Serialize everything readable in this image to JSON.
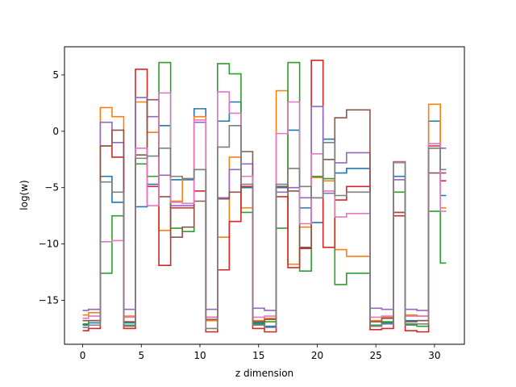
{
  "chart_data": {
    "type": "line",
    "drawstyle": "steps-mid",
    "xlabel": "z dimension",
    "ylabel": "log(w)",
    "xlim": [
      -1.55,
      32.55
    ],
    "ylim": [
      -18.9,
      7.5
    ],
    "xticks": [
      0,
      5,
      10,
      15,
      20,
      25,
      30
    ],
    "yticks": [
      -15,
      -10,
      -5,
      0,
      5
    ],
    "grid": false,
    "legend": null,
    "x": [
      0,
      1,
      2,
      3,
      4,
      5,
      6,
      7,
      8,
      9,
      10,
      11,
      12,
      13,
      14,
      15,
      16,
      17,
      18,
      19,
      20,
      21,
      22,
      23,
      24,
      25,
      26,
      27,
      28,
      29,
      30,
      31
    ],
    "series": [
      {
        "color": "#1f77b4",
        "values": [
          -17.2,
          -17.0,
          -4.0,
          -6.3,
          -17.0,
          -6.7,
          -4.7,
          0.5,
          -4.3,
          -4.3,
          2.0,
          -16.5,
          0.9,
          2.6,
          -5.0,
          -17.0,
          -17.3,
          -5.0,
          0.1,
          -6.8,
          -8.1,
          -0.7,
          -3.7,
          -3.3,
          -3.3,
          -17.3,
          -17.0,
          -4.0,
          -16.8,
          -16.8,
          0.9,
          -5.7
        ]
      },
      {
        "color": "#ff7f0e",
        "values": [
          -16.3,
          -16.1,
          2.1,
          1.3,
          -16.4,
          2.6,
          -0.1,
          -8.8,
          -6.2,
          -4.2,
          1.3,
          -16.8,
          -9.4,
          -2.3,
          -6.8,
          -16.8,
          -16.6,
          3.6,
          -11.8,
          -8.5,
          -4.1,
          -4.4,
          -10.5,
          -11.1,
          -11.1,
          -16.8,
          -16.5,
          -7.2,
          -16.3,
          -16.4,
          2.4,
          -6.8
        ]
      },
      {
        "color": "#2ca02c",
        "values": [
          -17.1,
          -16.8,
          -12.6,
          -7.5,
          -17.2,
          -2.9,
          -4.0,
          6.1,
          -8.6,
          -8.9,
          -3.4,
          -16.7,
          6.0,
          5.1,
          -7.2,
          -17.1,
          -16.9,
          -8.6,
          6.1,
          -12.4,
          -4.0,
          -4.2,
          -13.6,
          -12.6,
          -12.6,
          -17.2,
          -16.9,
          -5.4,
          -17.1,
          -17.3,
          -7.1,
          -11.7
        ]
      },
      {
        "color": "#d62728",
        "values": [
          -17.7,
          -17.5,
          -1.3,
          -2.3,
          -17.5,
          5.5,
          -4.9,
          -11.9,
          -6.8,
          -6.8,
          -5.3,
          -17.8,
          -12.3,
          -8.0,
          -4.9,
          -17.5,
          -17.8,
          -5.8,
          -12.1,
          -10.4,
          6.3,
          -10.3,
          -6.1,
          -4.9,
          -4.9,
          -17.6,
          -17.5,
          -7.5,
          -17.7,
          -17.8,
          -1.3,
          -4.4
        ]
      },
      {
        "color": "#9467bd",
        "values": [
          -15.9,
          -15.8,
          0.8,
          -1.0,
          -15.8,
          3.0,
          1.3,
          -3.9,
          -6.6,
          -6.6,
          0.8,
          -15.8,
          -5.9,
          -3.4,
          -2.9,
          -15.7,
          -15.9,
          -5.4,
          -5.0,
          -5.9,
          2.2,
          -5.5,
          -2.8,
          -1.9,
          -1.9,
          -15.7,
          -15.8,
          -4.3,
          -15.8,
          -15.9,
          -1.5,
          -1.5
        ]
      },
      {
        "color": "#8c564b",
        "values": [
          -16.8,
          -16.8,
          -1.3,
          0.1,
          -16.9,
          -2.1,
          2.8,
          -5.8,
          -9.4,
          -8.5,
          -6.2,
          -16.7,
          -6.0,
          -5.4,
          -1.8,
          -16.9,
          -16.7,
          -4.9,
          -5.3,
          -10.3,
          -5.9,
          -2.5,
          1.2,
          1.9,
          1.9,
          -16.9,
          -16.6,
          -7.2,
          -16.9,
          -16.8,
          -3.7,
          -3.7
        ]
      },
      {
        "color": "#e377c2",
        "values": [
          -16.6,
          -16.4,
          -9.8,
          -9.7,
          -16.5,
          -1.5,
          -6.6,
          3.4,
          -6.3,
          -6.4,
          1.0,
          -16.5,
          3.5,
          1.6,
          -4.0,
          -16.5,
          -16.4,
          -0.2,
          2.6,
          -8.2,
          -2.0,
          -5.3,
          -7.6,
          -7.3,
          -7.3,
          -16.5,
          -16.4,
          -2.8,
          -16.4,
          -16.4,
          -1.1,
          -7.1
        ]
      },
      {
        "color": "#7f7f7f",
        "values": [
          -17.4,
          -17.2,
          -4.5,
          -5.4,
          -17.3,
          -2.4,
          -2.2,
          -1.5,
          -4.0,
          -4.2,
          -3.4,
          -17.5,
          -1.4,
          0.5,
          -4.7,
          -17.2,
          -17.4,
          -4.7,
          -3.3,
          -4.9,
          -5.9,
          -1.0,
          -5.7,
          -5.4,
          -5.4,
          -17.3,
          -17.1,
          -2.7,
          -17.2,
          -17.1,
          -1.5,
          -3.4
        ]
      }
    ]
  }
}
